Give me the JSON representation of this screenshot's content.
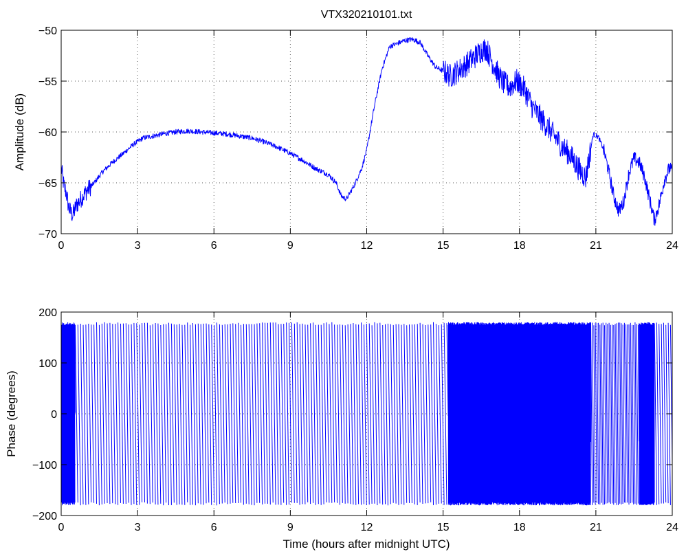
{
  "chart_data": [
    {
      "type": "line",
      "title": "VTX320210101.txt",
      "xlabel": "",
      "ylabel": "Amplitude (dB)",
      "xlim": [
        0,
        24
      ],
      "ylim": [
        -70,
        -50
      ],
      "xticks": [
        0,
        3,
        6,
        9,
        12,
        15,
        18,
        21,
        24
      ],
      "yticks": [
        -70,
        -65,
        -60,
        -55,
        -50
      ],
      "grid": true,
      "series": [
        {
          "color": "#0000ff",
          "x": [
            0,
            0.1,
            0.2,
            0.3,
            0.45,
            0.6,
            0.8,
            1.0,
            1.3,
            1.6,
            2.0,
            2.4,
            2.8,
            3.2,
            3.6,
            4.0,
            4.5,
            5.0,
            5.5,
            6.0,
            6.5,
            7.0,
            7.5,
            8.0,
            8.5,
            9.0,
            9.5,
            10.0,
            10.5,
            10.8,
            11.0,
            11.2,
            11.5,
            11.8,
            12.0,
            12.3,
            12.6,
            12.9,
            13.2,
            13.5,
            13.8,
            14.1,
            14.4,
            14.7,
            15.0,
            15.3,
            15.6,
            15.9,
            16.2,
            16.5,
            16.7,
            17.0,
            17.3,
            17.6,
            17.9,
            18.2,
            18.5,
            18.8,
            19.1,
            19.4,
            19.7,
            20.0,
            20.3,
            20.6,
            20.9,
            21.1,
            21.3,
            21.5,
            21.7,
            21.9,
            22.1,
            22.3,
            22.5,
            22.7,
            22.9,
            23.1,
            23.3,
            23.5,
            23.7,
            23.9,
            24.0
          ],
          "values": [
            -63.5,
            -65.2,
            -66.0,
            -67.5,
            -68.2,
            -67.2,
            -66.5,
            -65.8,
            -65.0,
            -64.0,
            -63.0,
            -62.2,
            -61.3,
            -60.6,
            -60.4,
            -60.2,
            -60.0,
            -59.9,
            -60.0,
            -60.1,
            -60.2,
            -60.4,
            -60.6,
            -61.0,
            -61.5,
            -62.1,
            -62.8,
            -63.6,
            -64.2,
            -65.0,
            -66.3,
            -66.6,
            -65.3,
            -63.6,
            -61.8,
            -57.5,
            -53.8,
            -51.6,
            -51.3,
            -51.0,
            -50.9,
            -51.2,
            -52.5,
            -53.6,
            -54.0,
            -54.5,
            -54.0,
            -53.4,
            -52.7,
            -52.0,
            -51.8,
            -53.5,
            -55.0,
            -55.6,
            -55.0,
            -55.8,
            -57.5,
            -58.5,
            -59.5,
            -60.5,
            -61.5,
            -62.3,
            -63.5,
            -64.5,
            -60.2,
            -60.5,
            -61.7,
            -63.8,
            -66.3,
            -67.8,
            -66.8,
            -64.0,
            -62.6,
            -63.0,
            -64.3,
            -66.5,
            -68.7,
            -67.0,
            -64.6,
            -63.5,
            -64.0
          ]
        }
      ]
    },
    {
      "type": "line",
      "title": "",
      "xlabel": "Time (hours after midnight UTC)",
      "ylabel": "Phase (degrees)",
      "xlim": [
        0,
        24
      ],
      "ylim": [
        -200,
        200
      ],
      "xticks": [
        0,
        3,
        6,
        9,
        12,
        15,
        18,
        21,
        24
      ],
      "yticks": [
        -200,
        -100,
        0,
        100,
        200
      ],
      "grid": true,
      "series": [
        {
          "color": "#0000ff",
          "wrap_range": [
            -180,
            180
          ],
          "segments": [
            {
              "x_start": 0.0,
              "x_end": 0.55,
              "period_hours": 0.02
            },
            {
              "x_start": 0.55,
              "x_end": 15.2,
              "period_hours": 0.105
            },
            {
              "x_start": 15.2,
              "x_end": 20.8,
              "period_hours": 0.012
            },
            {
              "x_start": 20.8,
              "x_end": 22.7,
              "period_hours": 0.06
            },
            {
              "x_start": 22.7,
              "x_end": 23.3,
              "period_hours": 0.012
            },
            {
              "x_start": 23.3,
              "x_end": 24.0,
              "period_hours": 0.09
            }
          ]
        }
      ]
    }
  ]
}
